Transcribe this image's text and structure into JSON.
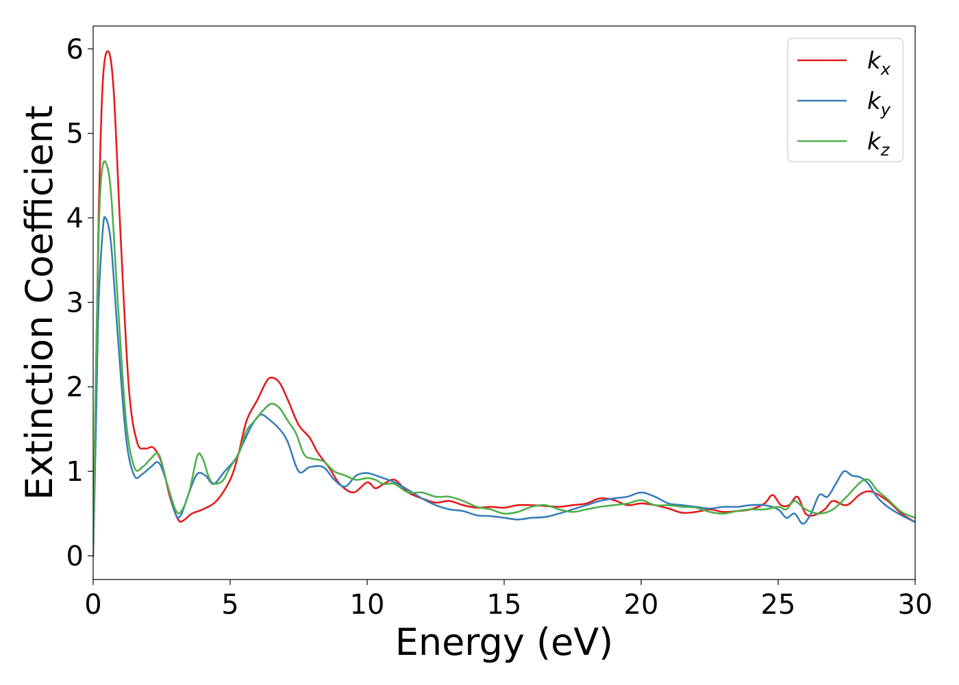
{
  "chart_data": {
    "type": "line",
    "xlabel": "Energy (eV)",
    "ylabel": "Extinction Coefficient",
    "xlim": [
      0,
      30
    ],
    "ylim": [
      -0.28,
      6.27
    ],
    "xticks": [
      0,
      5,
      10,
      15,
      20,
      25,
      30
    ],
    "yticks": [
      0,
      1,
      2,
      3,
      4,
      5,
      6
    ],
    "grid": false,
    "legend_position": "top-right",
    "series": [
      {
        "name": "k_x",
        "base": "k",
        "sub": "x",
        "color": "#e41a1c",
        "points": [
          [
            0,
            0
          ],
          [
            0.1,
            2.0
          ],
          [
            0.2,
            4.0
          ],
          [
            0.35,
            5.6
          ],
          [
            0.55,
            5.97
          ],
          [
            0.75,
            5.5
          ],
          [
            1.0,
            3.8
          ],
          [
            1.3,
            2.0
          ],
          [
            1.6,
            1.35
          ],
          [
            1.9,
            1.27
          ],
          [
            2.2,
            1.28
          ],
          [
            2.5,
            1.1
          ],
          [
            2.8,
            0.7
          ],
          [
            3.1,
            0.43
          ],
          [
            3.3,
            0.42
          ],
          [
            3.6,
            0.5
          ],
          [
            4.0,
            0.55
          ],
          [
            4.5,
            0.65
          ],
          [
            5.0,
            0.9
          ],
          [
            5.3,
            1.2
          ],
          [
            5.6,
            1.6
          ],
          [
            6.0,
            1.85
          ],
          [
            6.3,
            2.05
          ],
          [
            6.5,
            2.11
          ],
          [
            6.8,
            2.05
          ],
          [
            7.1,
            1.85
          ],
          [
            7.5,
            1.55
          ],
          [
            7.9,
            1.4
          ],
          [
            8.2,
            1.22
          ],
          [
            8.6,
            1.05
          ],
          [
            9.0,
            0.85
          ],
          [
            9.5,
            0.75
          ],
          [
            10.0,
            0.87
          ],
          [
            10.3,
            0.8
          ],
          [
            10.6,
            0.85
          ],
          [
            11.0,
            0.9
          ],
          [
            11.5,
            0.75
          ],
          [
            12.0,
            0.68
          ],
          [
            12.5,
            0.63
          ],
          [
            13.0,
            0.65
          ],
          [
            13.5,
            0.6
          ],
          [
            14.0,
            0.57
          ],
          [
            14.5,
            0.58
          ],
          [
            15.0,
            0.57
          ],
          [
            15.5,
            0.6
          ],
          [
            16.0,
            0.6
          ],
          [
            16.5,
            0.59
          ],
          [
            17.0,
            0.58
          ],
          [
            17.5,
            0.6
          ],
          [
            18.0,
            0.62
          ],
          [
            18.5,
            0.68
          ],
          [
            19.0,
            0.66
          ],
          [
            19.5,
            0.6
          ],
          [
            20.0,
            0.62
          ],
          [
            20.5,
            0.6
          ],
          [
            21.0,
            0.56
          ],
          [
            21.5,
            0.51
          ],
          [
            22.0,
            0.52
          ],
          [
            22.5,
            0.55
          ],
          [
            23.0,
            0.52
          ],
          [
            23.5,
            0.53
          ],
          [
            24.0,
            0.55
          ],
          [
            24.5,
            0.62
          ],
          [
            24.8,
            0.72
          ],
          [
            25.1,
            0.6
          ],
          [
            25.4,
            0.6
          ],
          [
            25.7,
            0.7
          ],
          [
            26.0,
            0.5
          ],
          [
            26.3,
            0.48
          ],
          [
            26.7,
            0.55
          ],
          [
            27.0,
            0.65
          ],
          [
            27.5,
            0.6
          ],
          [
            28.0,
            0.73
          ],
          [
            28.4,
            0.76
          ],
          [
            29.0,
            0.65
          ],
          [
            29.5,
            0.5
          ],
          [
            30.0,
            0.4
          ]
        ]
      },
      {
        "name": "k_y",
        "base": "k",
        "sub": "y",
        "color": "#377eb8",
        "points": [
          [
            0,
            0
          ],
          [
            0.1,
            1.5
          ],
          [
            0.2,
            3.0
          ],
          [
            0.35,
            3.85
          ],
          [
            0.45,
            4.0
          ],
          [
            0.65,
            3.7
          ],
          [
            0.9,
            2.6
          ],
          [
            1.2,
            1.4
          ],
          [
            1.5,
            0.95
          ],
          [
            1.8,
            0.97
          ],
          [
            2.1,
            1.05
          ],
          [
            2.4,
            1.1
          ],
          [
            2.7,
            0.85
          ],
          [
            3.0,
            0.5
          ],
          [
            3.2,
            0.48
          ],
          [
            3.5,
            0.75
          ],
          [
            3.8,
            0.97
          ],
          [
            4.1,
            0.95
          ],
          [
            4.4,
            0.85
          ],
          [
            4.8,
            1.0
          ],
          [
            5.2,
            1.15
          ],
          [
            5.5,
            1.35
          ],
          [
            5.8,
            1.55
          ],
          [
            6.1,
            1.67
          ],
          [
            6.4,
            1.62
          ],
          [
            6.8,
            1.5
          ],
          [
            7.1,
            1.35
          ],
          [
            7.5,
            1.0
          ],
          [
            7.9,
            1.05
          ],
          [
            8.4,
            1.05
          ],
          [
            8.8,
            0.9
          ],
          [
            9.2,
            0.82
          ],
          [
            9.6,
            0.95
          ],
          [
            10.0,
            0.98
          ],
          [
            10.5,
            0.93
          ],
          [
            11.0,
            0.87
          ],
          [
            11.5,
            0.78
          ],
          [
            12.0,
            0.68
          ],
          [
            12.5,
            0.6
          ],
          [
            13.0,
            0.55
          ],
          [
            13.5,
            0.53
          ],
          [
            14.0,
            0.48
          ],
          [
            14.5,
            0.47
          ],
          [
            15.0,
            0.45
          ],
          [
            15.5,
            0.43
          ],
          [
            16.0,
            0.45
          ],
          [
            16.5,
            0.46
          ],
          [
            17.0,
            0.5
          ],
          [
            17.5,
            0.55
          ],
          [
            18.0,
            0.6
          ],
          [
            18.5,
            0.65
          ],
          [
            19.0,
            0.68
          ],
          [
            19.5,
            0.7
          ],
          [
            20.0,
            0.75
          ],
          [
            20.5,
            0.7
          ],
          [
            21.0,
            0.62
          ],
          [
            21.5,
            0.6
          ],
          [
            22.0,
            0.58
          ],
          [
            22.5,
            0.56
          ],
          [
            23.0,
            0.58
          ],
          [
            23.5,
            0.58
          ],
          [
            24.0,
            0.6
          ],
          [
            24.5,
            0.6
          ],
          [
            25.0,
            0.55
          ],
          [
            25.3,
            0.45
          ],
          [
            25.6,
            0.5
          ],
          [
            25.9,
            0.38
          ],
          [
            26.2,
            0.5
          ],
          [
            26.5,
            0.72
          ],
          [
            26.8,
            0.7
          ],
          [
            27.1,
            0.85
          ],
          [
            27.4,
            1.0
          ],
          [
            27.7,
            0.95
          ],
          [
            28.0,
            0.93
          ],
          [
            28.3,
            0.85
          ],
          [
            28.6,
            0.7
          ],
          [
            29.0,
            0.58
          ],
          [
            29.5,
            0.48
          ],
          [
            30.0,
            0.4
          ]
        ]
      },
      {
        "name": "k_z",
        "base": "k",
        "sub": "z",
        "color": "#4daf4a",
        "points": [
          [
            0,
            0
          ],
          [
            0.1,
            2.2
          ],
          [
            0.2,
            3.8
          ],
          [
            0.3,
            4.5
          ],
          [
            0.45,
            4.66
          ],
          [
            0.65,
            4.3
          ],
          [
            0.9,
            3.0
          ],
          [
            1.2,
            1.6
          ],
          [
            1.5,
            1.05
          ],
          [
            1.8,
            1.05
          ],
          [
            2.1,
            1.15
          ],
          [
            2.4,
            1.2
          ],
          [
            2.7,
            0.85
          ],
          [
            3.0,
            0.55
          ],
          [
            3.2,
            0.52
          ],
          [
            3.5,
            0.75
          ],
          [
            3.8,
            1.18
          ],
          [
            4.0,
            1.15
          ],
          [
            4.3,
            0.88
          ],
          [
            4.7,
            0.88
          ],
          [
            5.0,
            1.05
          ],
          [
            5.3,
            1.2
          ],
          [
            5.6,
            1.48
          ],
          [
            5.9,
            1.6
          ],
          [
            6.2,
            1.72
          ],
          [
            6.5,
            1.8
          ],
          [
            6.8,
            1.75
          ],
          [
            7.1,
            1.6
          ],
          [
            7.4,
            1.45
          ],
          [
            7.7,
            1.2
          ],
          [
            8.0,
            1.15
          ],
          [
            8.4,
            1.12
          ],
          [
            8.8,
            1.0
          ],
          [
            9.2,
            0.95
          ],
          [
            9.6,
            0.9
          ],
          [
            10.0,
            0.92
          ],
          [
            10.3,
            0.9
          ],
          [
            10.6,
            0.85
          ],
          [
            11.0,
            0.85
          ],
          [
            11.5,
            0.75
          ],
          [
            12.0,
            0.75
          ],
          [
            12.5,
            0.7
          ],
          [
            13.0,
            0.7
          ],
          [
            13.5,
            0.65
          ],
          [
            14.0,
            0.58
          ],
          [
            14.5,
            0.55
          ],
          [
            15.0,
            0.5
          ],
          [
            15.5,
            0.52
          ],
          [
            16.0,
            0.58
          ],
          [
            16.5,
            0.6
          ],
          [
            17.0,
            0.55
          ],
          [
            17.5,
            0.52
          ],
          [
            18.0,
            0.55
          ],
          [
            18.5,
            0.58
          ],
          [
            19.0,
            0.6
          ],
          [
            19.5,
            0.62
          ],
          [
            20.0,
            0.66
          ],
          [
            20.5,
            0.6
          ],
          [
            21.0,
            0.6
          ],
          [
            21.5,
            0.58
          ],
          [
            22.0,
            0.57
          ],
          [
            22.5,
            0.52
          ],
          [
            23.0,
            0.5
          ],
          [
            23.5,
            0.53
          ],
          [
            24.0,
            0.55
          ],
          [
            24.5,
            0.55
          ],
          [
            25.0,
            0.58
          ],
          [
            25.3,
            0.55
          ],
          [
            25.6,
            0.65
          ],
          [
            26.0,
            0.55
          ],
          [
            26.5,
            0.5
          ],
          [
            27.0,
            0.55
          ],
          [
            27.5,
            0.7
          ],
          [
            28.0,
            0.87
          ],
          [
            28.3,
            0.9
          ],
          [
            28.6,
            0.78
          ],
          [
            29.0,
            0.67
          ],
          [
            29.5,
            0.52
          ],
          [
            30.0,
            0.45
          ]
        ]
      }
    ]
  }
}
